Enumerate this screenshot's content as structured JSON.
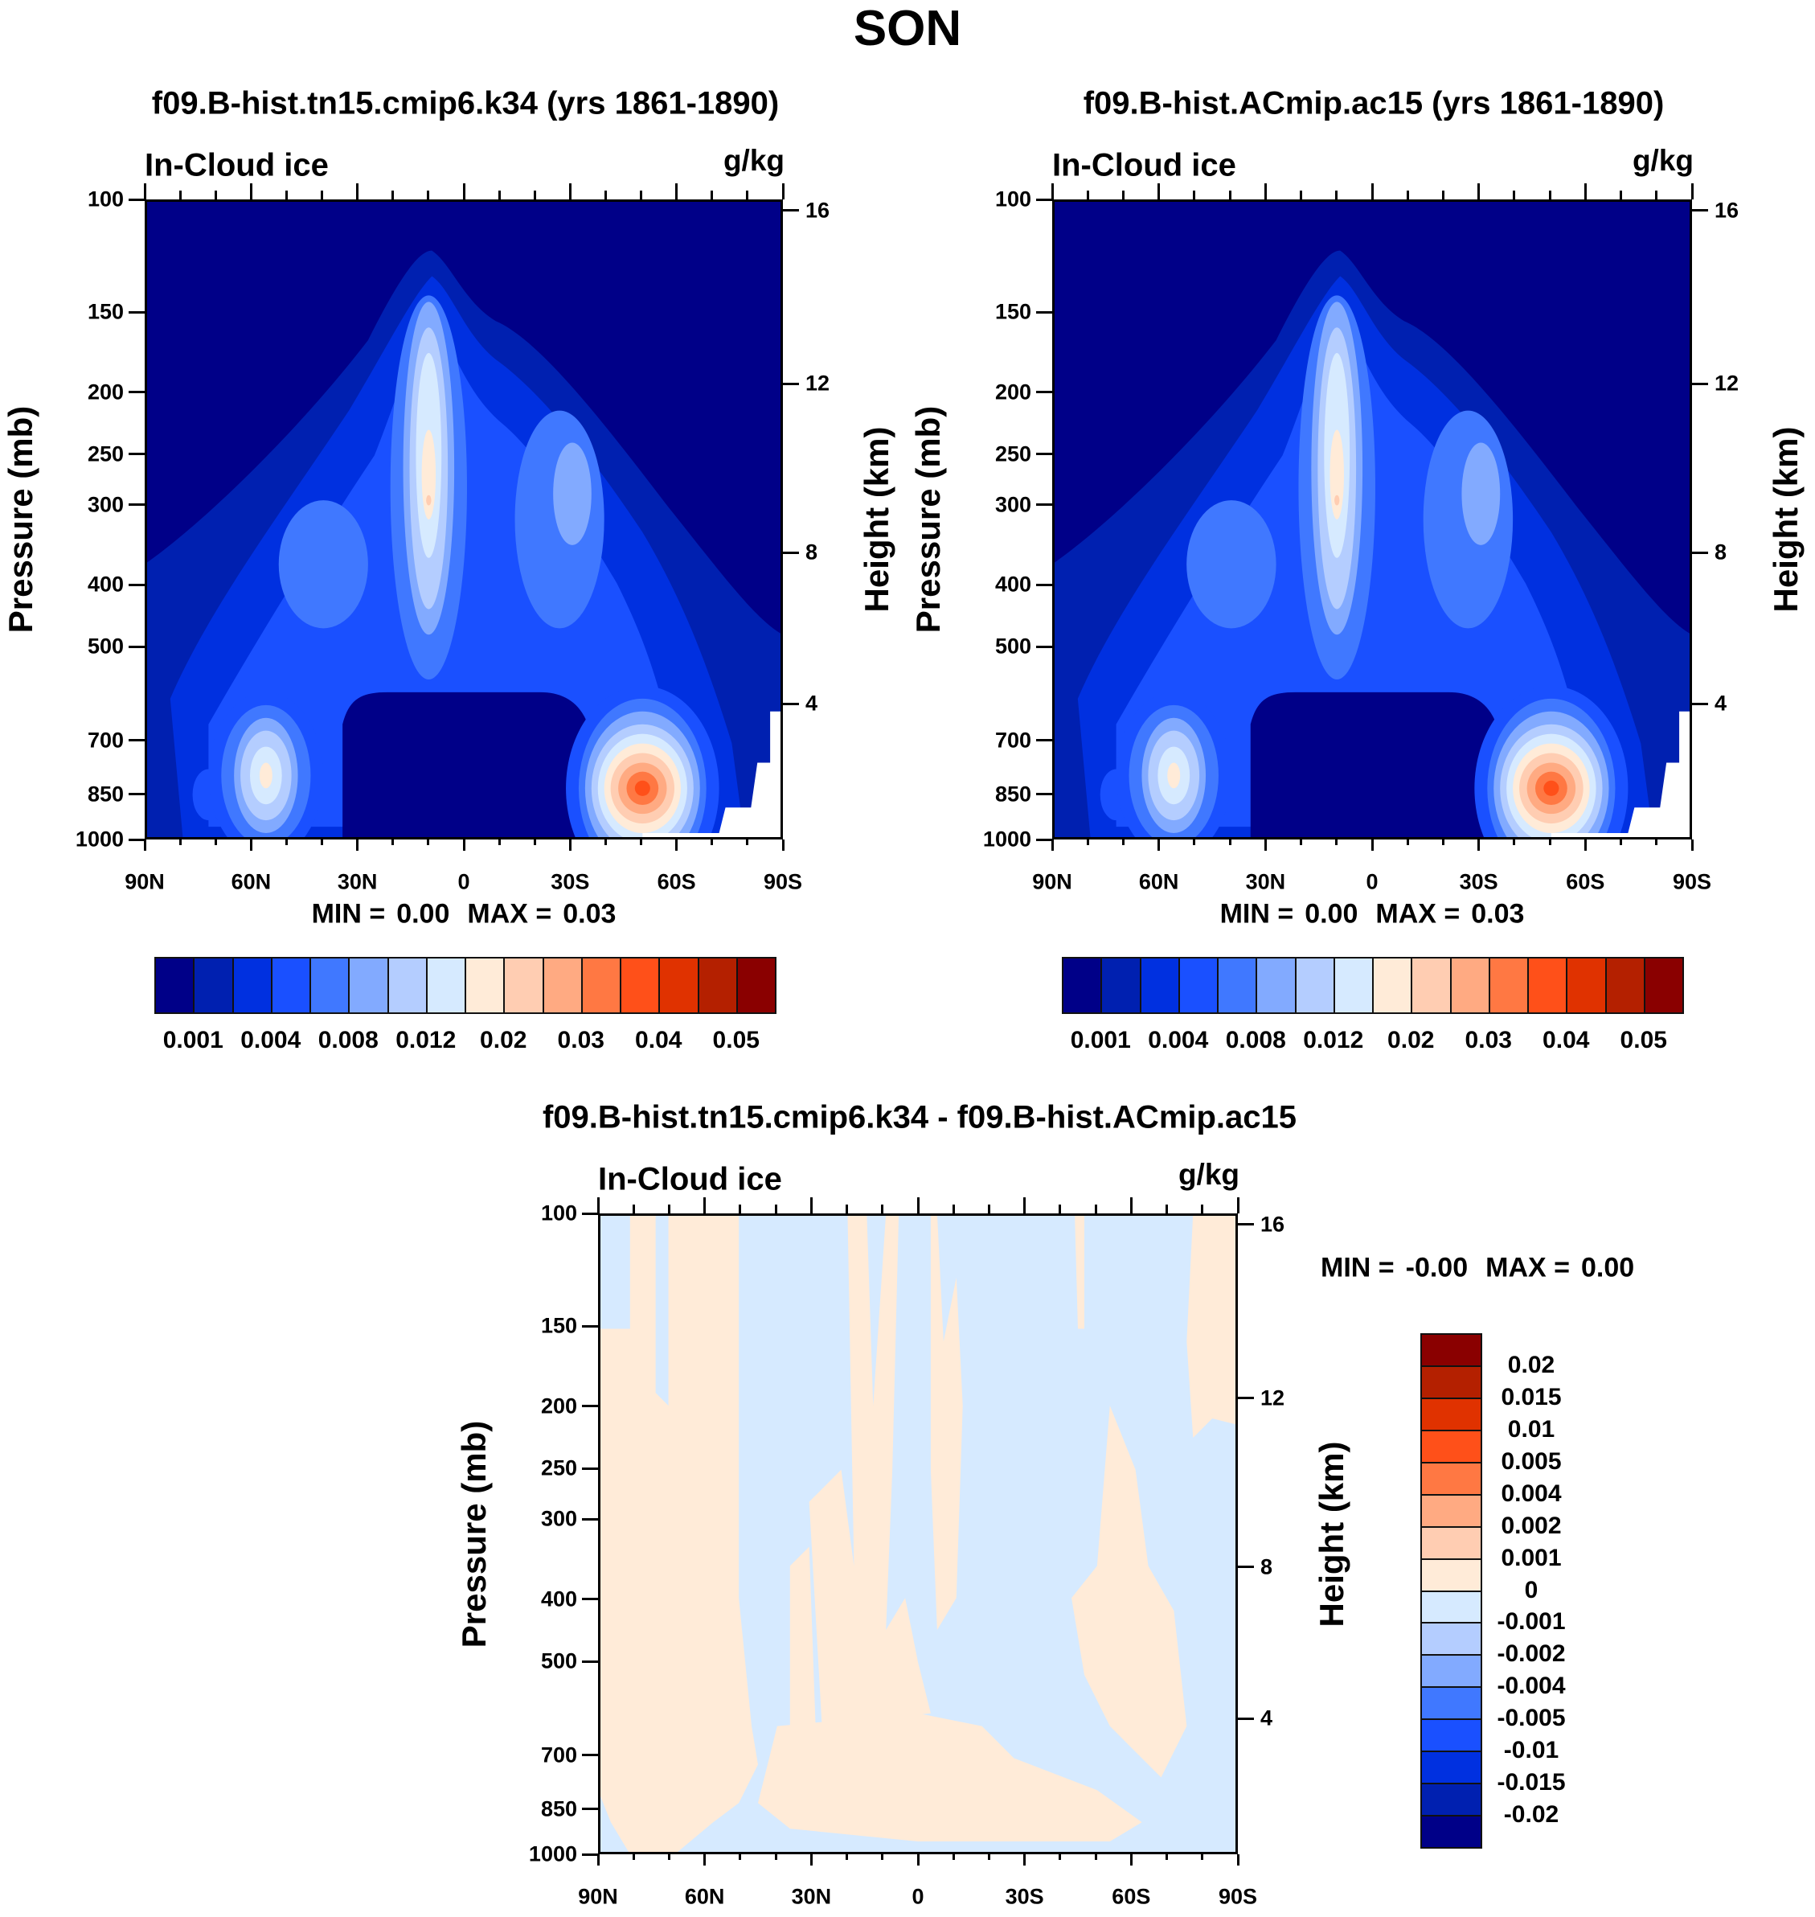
{
  "figure_title": "SON",
  "chart_data": [
    {
      "type": "contour",
      "title": "f09.B-hist.tn15.cmip6.k34 (yrs 1861-1890)",
      "subtitle_left": "In-Cloud ice",
      "units": "g/kg",
      "ylabel": "Pressure (mb)",
      "ylabel_right": "Height (km)",
      "yscale": "log",
      "ylim": [
        1000,
        100
      ],
      "yticks": [
        "100",
        "150",
        "200",
        "250",
        "300",
        "400",
        "500",
        "700",
        "850",
        "1000"
      ],
      "right_ticks": [
        "16",
        "12",
        "8",
        "4"
      ],
      "xlim": [
        90,
        -90
      ],
      "xtick_values": [
        90,
        60,
        30,
        0,
        -30,
        -60,
        -90
      ],
      "xticks": [
        "90N",
        "60N",
        "30N",
        "0",
        "30S",
        "60S",
        "90S"
      ],
      "stats": {
        "min_label": "MIN =",
        "min": "0.00",
        "max_label": "MAX =",
        "max": "0.03"
      },
      "colorbar": {
        "orientation": "horizontal",
        "colors": [
          "#000088",
          "#0020B0",
          "#0030E0",
          "#1A50FF",
          "#4078FF",
          "#82AAFF",
          "#B4CDFF",
          "#D6EAFF",
          "#FFEBD8",
          "#FFCDB2",
          "#FFAA82",
          "#FF7843",
          "#FF5019",
          "#E03200",
          "#B42000",
          "#8A0000"
        ],
        "labels": [
          "0.001",
          "0.004",
          "0.008",
          "0.012",
          "0.02",
          "0.03",
          "0.04",
          "0.05"
        ]
      },
      "features": "tropical maximum near 10N, 200-500mb; mid-latitude low-level maxima near 55N and 50S (850mb, up to 0.03)"
    },
    {
      "type": "contour",
      "title": "f09.B-hist.ACmip.ac15 (yrs 1861-1890)",
      "subtitle_left": "In-Cloud ice",
      "units": "g/kg",
      "ylabel": "Pressure (mb)",
      "ylabel_right": "Height (km)",
      "yscale": "log",
      "ylim": [
        1000,
        100
      ],
      "yticks": [
        "100",
        "150",
        "200",
        "250",
        "300",
        "400",
        "500",
        "700",
        "850",
        "1000"
      ],
      "right_ticks": [
        "16",
        "12",
        "8",
        "4"
      ],
      "xlim": [
        90,
        -90
      ],
      "xtick_values": [
        90,
        60,
        30,
        0,
        -30,
        -60,
        -90
      ],
      "xticks": [
        "90N",
        "60N",
        "30N",
        "0",
        "30S",
        "60S",
        "90S"
      ],
      "stats": {
        "min_label": "MIN =",
        "min": "0.00",
        "max_label": "MAX =",
        "max": "0.03"
      },
      "colorbar": {
        "orientation": "horizontal",
        "colors": [
          "#000088",
          "#0020B0",
          "#0030E0",
          "#1A50FF",
          "#4078FF",
          "#82AAFF",
          "#B4CDFF",
          "#D6EAFF",
          "#FFEBD8",
          "#FFCDB2",
          "#FFAA82",
          "#FF7843",
          "#FF5019",
          "#E03200",
          "#B42000",
          "#8A0000"
        ],
        "labels": [
          "0.001",
          "0.004",
          "0.008",
          "0.012",
          "0.02",
          "0.03",
          "0.04",
          "0.05"
        ]
      }
    },
    {
      "type": "contour",
      "title": "f09.B-hist.tn15.cmip6.k34 - f09.B-hist.ACmip.ac15",
      "subtitle_left": "In-Cloud ice",
      "units": "g/kg",
      "ylabel": "Pressure (mb)",
      "ylabel_right": "Height (km)",
      "yscale": "log",
      "ylim": [
        1000,
        100
      ],
      "yticks": [
        "100",
        "150",
        "200",
        "250",
        "300",
        "400",
        "500",
        "700",
        "850",
        "1000"
      ],
      "right_ticks": [
        "16",
        "12",
        "8",
        "4"
      ],
      "xlim": [
        90,
        -90
      ],
      "xtick_values": [
        90,
        60,
        30,
        0,
        -30,
        -60,
        -90
      ],
      "xticks": [
        "90N",
        "60N",
        "30N",
        "0",
        "30S",
        "60S",
        "90S"
      ],
      "stats": {
        "min_label": "MIN =",
        "min": "-0.00",
        "max_label": "MAX =",
        "max": "0.00"
      },
      "colorbar": {
        "orientation": "vertical",
        "colors": [
          "#000088",
          "#0020B0",
          "#0030E0",
          "#1A50FF",
          "#4078FF",
          "#82AAFF",
          "#B4CDFF",
          "#D6EAFF",
          "#FFEBD8",
          "#FFCDB2",
          "#FFAA82",
          "#FF7843",
          "#FF5019",
          "#E03200",
          "#B42000",
          "#8A0000"
        ],
        "labels": [
          "-0.02",
          "-0.015",
          "-0.01",
          "-0.005",
          "-0.004",
          "-0.002",
          "-0.001",
          "0",
          "0.001",
          "0.002",
          "0.004",
          "0.005",
          "0.01",
          "0.015",
          "0.02"
        ]
      }
    }
  ]
}
